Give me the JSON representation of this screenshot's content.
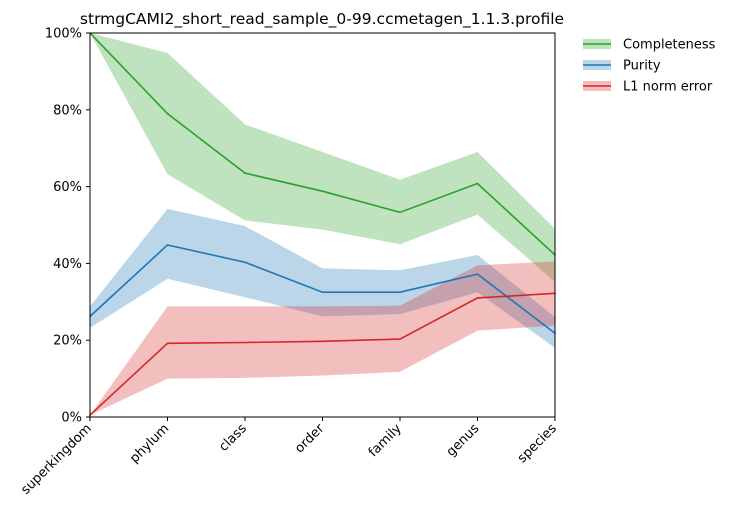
{
  "chart_data": {
    "type": "line",
    "title": "strmgCAMI2_short_read_sample_0-99.ccmetagen_1.1.3.profile",
    "xlabel": "",
    "ylabel": "",
    "categories": [
      "superkingdom",
      "phylum",
      "class",
      "order",
      "family",
      "genus",
      "species"
    ],
    "ylim": [
      0,
      1
    ],
    "yticks": [
      0,
      0.2,
      0.4,
      0.6,
      0.8,
      1.0
    ],
    "ytick_labels": [
      "0%",
      "20%",
      "40%",
      "60%",
      "80%",
      "100%"
    ],
    "grid": false,
    "legend_position": "outside top-right",
    "series": [
      {
        "name": "Completeness",
        "color": "#2ca02c",
        "values": [
          1.0,
          0.79,
          0.635,
          0.588,
          0.533,
          0.608,
          0.422
        ],
        "lower": [
          1.0,
          0.632,
          0.512,
          0.488,
          0.45,
          0.527,
          0.352
        ],
        "upper": [
          1.0,
          0.948,
          0.762,
          0.69,
          0.618,
          0.69,
          0.49
        ]
      },
      {
        "name": "Purity",
        "color": "#1f77b4",
        "values": [
          0.262,
          0.448,
          0.403,
          0.325,
          0.325,
          0.372,
          0.218
        ],
        "lower": [
          0.232,
          0.36,
          0.312,
          0.262,
          0.268,
          0.325,
          0.18
        ],
        "upper": [
          0.288,
          0.542,
          0.497,
          0.387,
          0.382,
          0.422,
          0.26
        ]
      },
      {
        "name": "L1 norm error",
        "color": "#d62728",
        "values": [
          0.005,
          0.192,
          0.194,
          0.197,
          0.203,
          0.31,
          0.322
        ],
        "lower": [
          0.005,
          0.1,
          0.102,
          0.108,
          0.118,
          0.225,
          0.238
        ],
        "upper": [
          0.005,
          0.288,
          0.288,
          0.288,
          0.29,
          0.395,
          0.405
        ]
      }
    ]
  }
}
